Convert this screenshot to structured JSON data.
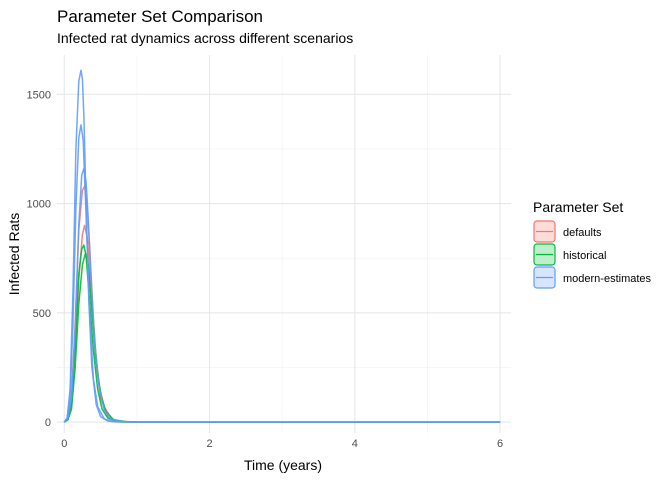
{
  "chart_data": {
    "type": "line",
    "title": "Parameter Set Comparison",
    "subtitle": "Infected rat dynamics across different scenarios",
    "xlabel": "Time (years)",
    "ylabel": "Infected Rats",
    "xlim": [
      -0.1,
      6.15
    ],
    "ylim": [
      -50,
      1680
    ],
    "x_ticks": [
      0,
      2,
      4,
      6
    ],
    "x_tick_labels": [
      "0",
      "2",
      "4",
      "6"
    ],
    "y_ticks": [
      0,
      500,
      1000,
      1500
    ],
    "y_tick_labels": [
      "0",
      "500",
      "1000",
      "1500"
    ],
    "grid": true,
    "legend": {
      "title": "Parameter Set",
      "placement": "right"
    },
    "series": [
      {
        "name": "defaults",
        "color": "#F8766D",
        "curves": [
          {
            "x": [
              0,
              0.05,
              0.1,
              0.15,
              0.2,
              0.25,
              0.28,
              0.31,
              0.35,
              0.4,
              0.45,
              0.5,
              0.6,
              0.7,
              0.8,
              1.0,
              1.5,
              2,
              4,
              6
            ],
            "y": [
              0,
              20,
              120,
              450,
              880,
              1060,
              1080,
              1020,
              800,
              480,
              240,
              110,
              25,
              6,
              2,
              0.5,
              0,
              0,
              0,
              0
            ]
          },
          {
            "x": [
              0,
              0.05,
              0.1,
              0.15,
              0.2,
              0.25,
              0.28,
              0.32,
              0.36,
              0.42,
              0.48,
              0.55,
              0.65,
              0.8,
              1.0,
              1.5,
              2,
              4,
              6
            ],
            "y": [
              0,
              12,
              80,
              320,
              650,
              860,
              900,
              840,
              640,
              360,
              170,
              70,
              15,
              3,
              0.5,
              0,
              0,
              0,
              0
            ]
          }
        ]
      },
      {
        "name": "historical",
        "color": "#00BA38",
        "curves": [
          {
            "x": [
              0,
              0.05,
              0.1,
              0.15,
              0.2,
              0.24,
              0.27,
              0.3,
              0.34,
              0.4,
              0.46,
              0.52,
              0.6,
              0.7,
              0.85,
              1.0,
              1.5,
              2,
              4,
              6
            ],
            "y": [
              0,
              15,
              90,
              350,
              680,
              790,
              810,
              760,
              590,
              330,
              150,
              60,
              18,
              4,
              1,
              0,
              0,
              0,
              0,
              0
            ]
          },
          {
            "x": [
              0,
              0.05,
              0.1,
              0.15,
              0.2,
              0.25,
              0.29,
              0.33,
              0.37,
              0.43,
              0.5,
              0.57,
              0.68,
              0.85,
              1.0,
              1.5,
              2,
              4,
              6
            ],
            "y": [
              0,
              10,
              60,
              250,
              540,
              720,
              770,
              720,
              550,
              300,
              130,
              50,
              10,
              2,
              0,
              0,
              0,
              0,
              0
            ]
          }
        ]
      },
      {
        "name": "modern-estimates",
        "color": "#619CFF",
        "curves": [
          {
            "x": [
              0,
              0.04,
              0.08,
              0.12,
              0.16,
              0.2,
              0.23,
              0.25,
              0.27,
              0.3,
              0.34,
              0.38,
              0.44,
              0.5,
              0.6,
              0.7,
              0.85,
              1.0,
              1.5,
              2,
              4,
              6
            ],
            "y": [
              0,
              20,
              150,
              600,
              1250,
              1560,
              1610,
              1570,
              1400,
              1000,
              540,
              250,
              80,
              25,
              5,
              1,
              0,
              0,
              0,
              0,
              0,
              0
            ]
          },
          {
            "x": [
              0,
              0.04,
              0.08,
              0.12,
              0.16,
              0.2,
              0.23,
              0.26,
              0.3,
              0.34,
              0.4,
              0.46,
              0.55,
              0.65,
              0.8,
              1.0,
              1.5,
              2,
              4,
              6
            ],
            "y": [
              0,
              15,
              110,
              450,
              980,
              1300,
              1360,
              1290,
              950,
              560,
              200,
              70,
              15,
              3,
              0.5,
              0,
              0,
              0,
              0,
              0
            ]
          },
          {
            "x": [
              0,
              0.05,
              0.1,
              0.15,
              0.2,
              0.24,
              0.27,
              0.3,
              0.33,
              0.37,
              0.42,
              0.48,
              0.55,
              0.65,
              0.8,
              1.0,
              1.5,
              2,
              4,
              6
            ],
            "y": [
              0,
              18,
              110,
              420,
              900,
              1130,
              1160,
              1100,
              930,
              650,
              360,
              160,
              55,
              12,
              2,
              0.5,
              0,
              0,
              0,
              0
            ]
          }
        ]
      }
    ]
  }
}
